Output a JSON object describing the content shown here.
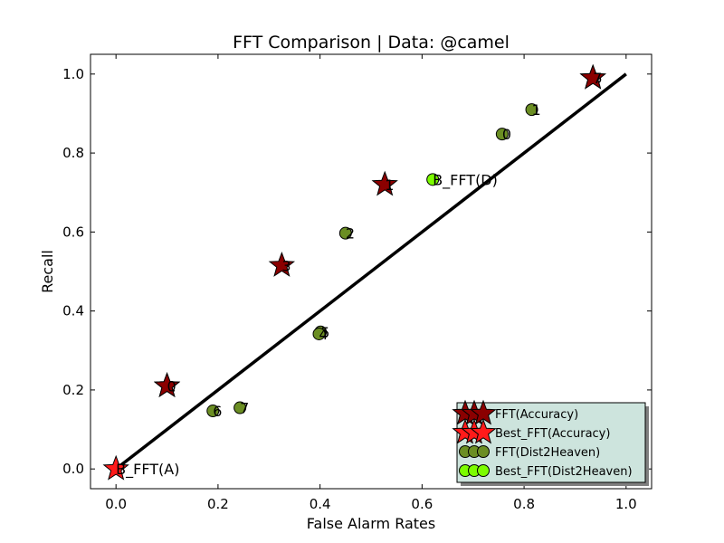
{
  "chart_data": {
    "type": "scatter",
    "title": "FFT Comparison |  Data: @camel",
    "xlabel": "False Alarm Rates",
    "ylabel": "Recall",
    "xlim": [
      -0.05,
      1.05
    ],
    "ylim": [
      -0.05,
      1.05
    ],
    "xticks": [
      "0.0",
      "0.2",
      "0.4",
      "0.6",
      "0.8",
      "1.0"
    ],
    "yticks": [
      "0.0",
      "0.2",
      "0.4",
      "0.6",
      "0.8",
      "1.0"
    ],
    "grid": false,
    "legend_position": "lower-right",
    "reference_line": {
      "from": [
        0,
        0
      ],
      "to": [
        1,
        1
      ]
    },
    "series": [
      {
        "name": "FFT(Accuracy)",
        "marker": "star",
        "color": "#8b0000",
        "points": [
          {
            "x": 0.1,
            "y": 0.21,
            "label": "2"
          },
          {
            "x": 0.1,
            "y": 0.21,
            "label": "0"
          },
          {
            "x": 0.325,
            "y": 0.515,
            "label": "3"
          },
          {
            "x": 0.527,
            "y": 0.72,
            "label": "1"
          },
          {
            "x": 0.935,
            "y": 0.99,
            "label": "6"
          },
          {
            "x": 0.935,
            "y": 0.99,
            "label": "7"
          }
        ]
      },
      {
        "name": "Best_FFT(Accuracy)",
        "marker": "star",
        "color": "#ff1a1a",
        "points": [
          {
            "x": 0.0,
            "y": 0.0,
            "label": "B_FFT(A)"
          }
        ]
      },
      {
        "name": "FFT(Dist2Heaven)",
        "marker": "circle",
        "color": "#6b8e23",
        "points": [
          {
            "x": 0.815,
            "y": 0.91,
            "label": "1"
          },
          {
            "x": 0.757,
            "y": 0.848,
            "label": "0"
          },
          {
            "x": 0.45,
            "y": 0.597,
            "label": "2"
          },
          {
            "x": 0.401,
            "y": 0.347,
            "label": "5"
          },
          {
            "x": 0.398,
            "y": 0.342,
            "label": "4"
          },
          {
            "x": 0.19,
            "y": 0.147,
            "label": "6"
          },
          {
            "x": 0.243,
            "y": 0.155,
            "label": "7"
          }
        ]
      },
      {
        "name": "Best_FFT(Dist2Heaven)",
        "marker": "circle",
        "color": "#7cfc00",
        "points": [
          {
            "x": 0.621,
            "y": 0.733,
            "label": "B_FFT(D)"
          }
        ]
      }
    ]
  }
}
